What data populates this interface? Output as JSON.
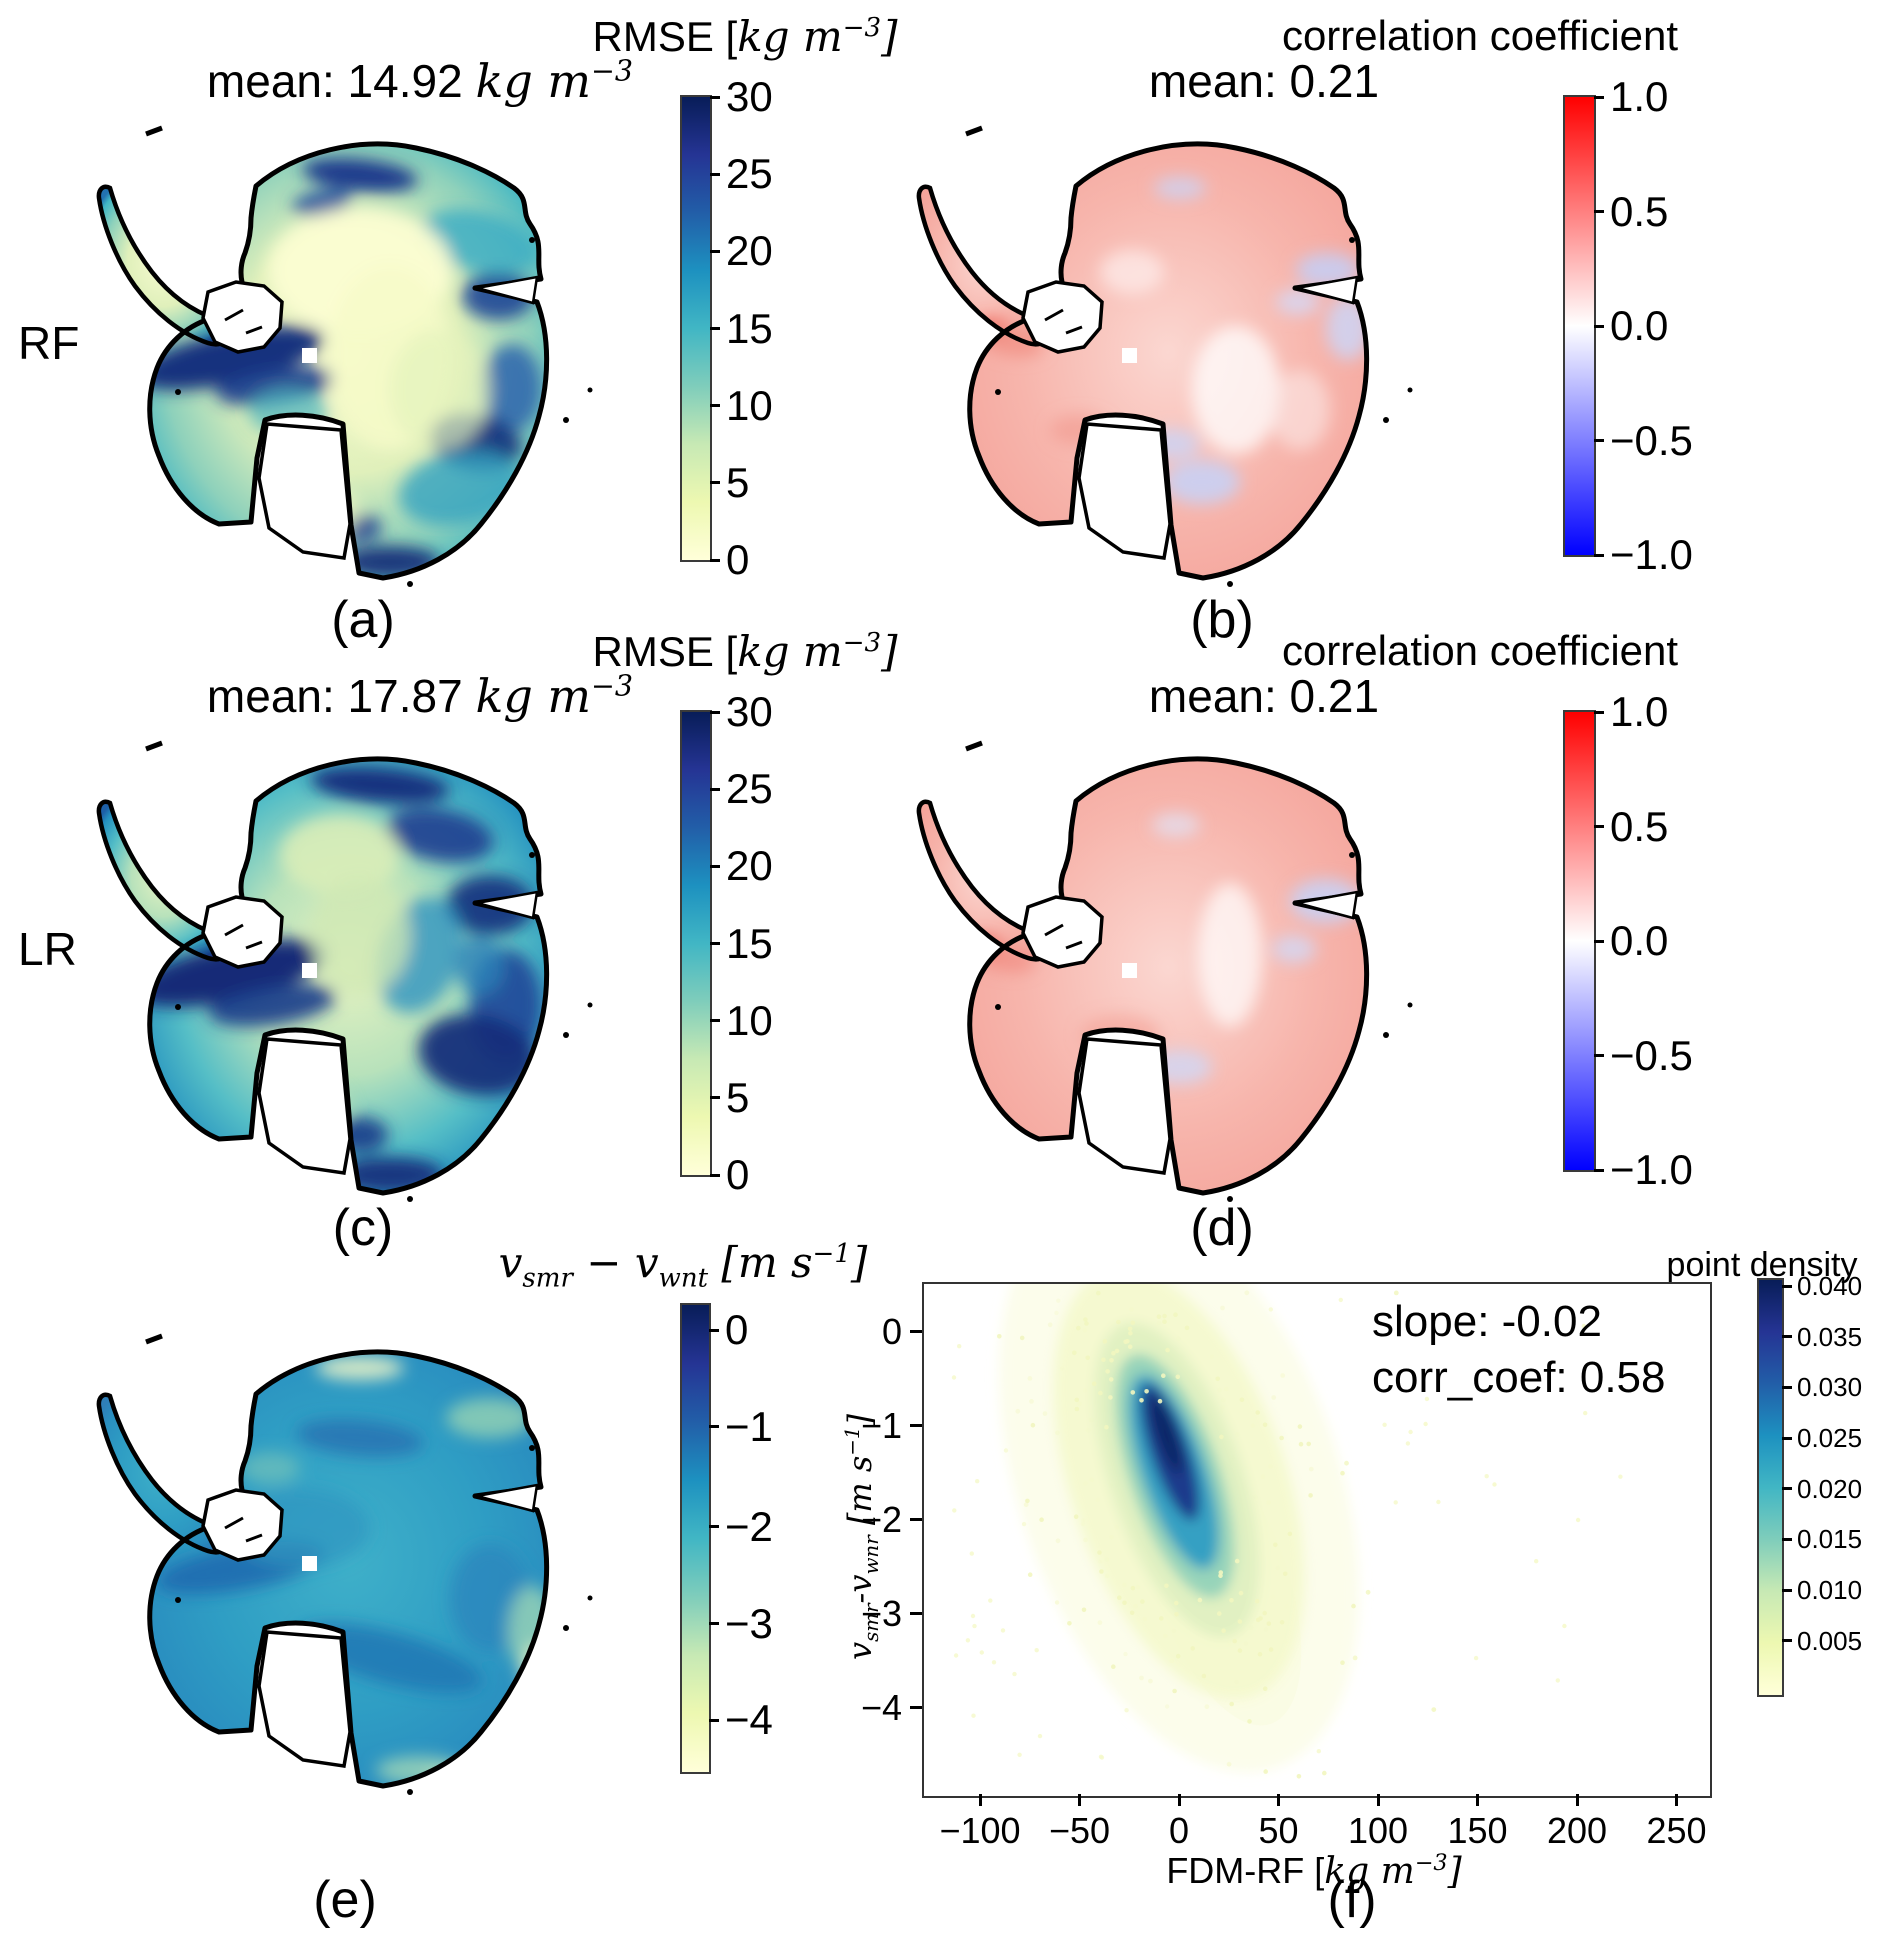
{
  "figure": {
    "row_labels": [
      "RF",
      "LR"
    ]
  },
  "colors": {
    "coastline": "#000000",
    "background": "#ffffff",
    "YlGnBu": [
      "#ffffd9",
      "#edf8b1",
      "#c7e9b4",
      "#7fcdbb",
      "#41b6c4",
      "#1d91c0",
      "#225ea8",
      "#253494",
      "#081d58"
    ],
    "bwr": [
      "#0000ff",
      "#ffffff",
      "#ff0000"
    ],
    "corr_light_red": "#f6b0a8",
    "corr_red_spot": "#ee6257",
    "corr_light_blue": "#c9d0f4",
    "rmse_light": "#e4f1bd",
    "rmse_navy": "#16307e",
    "density_core_navy": "#0e2766"
  },
  "chart_data": [
    {
      "id": "a",
      "type": "heatmap",
      "kind": "antarctica-map",
      "row_label": "RF",
      "colorbar_title_parts": [
        {
          "t": "RMSE ["
        },
        {
          "t": "kg m",
          "math": true
        },
        {
          "t": "−3",
          "math": true,
          "sup": true
        },
        {
          "t": "]",
          "math": true
        }
      ],
      "mean_parts": [
        {
          "t": "mean: 14.92 "
        },
        {
          "t": "kg m",
          "math": true
        },
        {
          "t": "−3",
          "math": true,
          "sup": true
        }
      ],
      "mean_value": 14.92,
      "units": "kg m^-3",
      "caption": "(a)",
      "colorbar": {
        "colormap": "YlGnBu",
        "vmin": 0,
        "vmax": 30,
        "ticks": [
          {
            "label": "30",
            "frac": 0
          },
          {
            "label": "25",
            "frac": 16.7
          },
          {
            "label": "20",
            "frac": 33.3
          },
          {
            "label": "15",
            "frac": 50
          },
          {
            "label": "10",
            "frac": 66.7
          },
          {
            "label": "5",
            "frac": 83.3
          },
          {
            "label": "0",
            "frac": 100
          }
        ]
      }
    },
    {
      "id": "b",
      "type": "heatmap",
      "kind": "antarctica-map",
      "title": "correlation coefficient",
      "mean_label": "mean: 0.21",
      "mean_value": 0.21,
      "caption": "(b)",
      "colorbar": {
        "colormap": "bwr",
        "vmin": -1.0,
        "vmax": 1.0,
        "ticks": [
          {
            "label": "1.0",
            "frac": 0
          },
          {
            "label": "0.5",
            "frac": 25
          },
          {
            "label": "0.0",
            "frac": 50
          },
          {
            "label": "−0.5",
            "frac": 75
          },
          {
            "label": "−1.0",
            "frac": 100
          }
        ]
      }
    },
    {
      "id": "c",
      "type": "heatmap",
      "kind": "antarctica-map",
      "row_label": "LR",
      "colorbar_title_parts": [
        {
          "t": "RMSE ["
        },
        {
          "t": "kg m",
          "math": true
        },
        {
          "t": "−3",
          "math": true,
          "sup": true
        },
        {
          "t": "]",
          "math": true
        }
      ],
      "mean_parts": [
        {
          "t": "mean: 17.87 "
        },
        {
          "t": "kg m",
          "math": true
        },
        {
          "t": "−3",
          "math": true,
          "sup": true
        }
      ],
      "mean_value": 17.87,
      "units": "kg m^-3",
      "caption": "(c)",
      "colorbar": {
        "colormap": "YlGnBu",
        "vmin": 0,
        "vmax": 30,
        "ticks": [
          {
            "label": "30",
            "frac": 0
          },
          {
            "label": "25",
            "frac": 16.7
          },
          {
            "label": "20",
            "frac": 33.3
          },
          {
            "label": "15",
            "frac": 50
          },
          {
            "label": "10",
            "frac": 66.7
          },
          {
            "label": "5",
            "frac": 83.3
          },
          {
            "label": "0",
            "frac": 100
          }
        ]
      }
    },
    {
      "id": "d",
      "type": "heatmap",
      "kind": "antarctica-map",
      "title": "correlation coefficient",
      "mean_label": "mean: 0.21",
      "mean_value": 0.21,
      "caption": "(d)",
      "colorbar": {
        "colormap": "bwr",
        "vmin": -1.0,
        "vmax": 1.0,
        "ticks": [
          {
            "label": "1.0",
            "frac": 0
          },
          {
            "label": "0.5",
            "frac": 25
          },
          {
            "label": "0.0",
            "frac": 50
          },
          {
            "label": "−0.5",
            "frac": 75
          },
          {
            "label": "−1.0",
            "frac": 100
          }
        ]
      }
    },
    {
      "id": "e",
      "type": "heatmap",
      "kind": "antarctica-map",
      "colorbar_title_parts": [
        {
          "t": "v",
          "math": true
        },
        {
          "t": "smr",
          "math": true,
          "sub": true
        },
        {
          "t": " − ",
          "math": true
        },
        {
          "t": "v",
          "math": true
        },
        {
          "t": "wnt",
          "math": true,
          "sub": true
        },
        {
          "t": " [",
          "math": true
        },
        {
          "t": "m s",
          "math": true
        },
        {
          "t": "−1",
          "math": true,
          "sup": true
        },
        {
          "t": "]",
          "math": true
        }
      ],
      "caption": "(e)",
      "colorbar": {
        "colormap": "YlGnBu",
        "vmin": -4.5,
        "vmax": 0.25,
        "ticks": [
          {
            "label": "0",
            "frac": 5.4
          },
          {
            "label": "−1",
            "frac": 26.1
          },
          {
            "label": "−2",
            "frac": 47.5
          },
          {
            "label": "−3",
            "frac": 68.3
          },
          {
            "label": "−4",
            "frac": 88.9
          }
        ]
      }
    },
    {
      "id": "f",
      "type": "scatter",
      "caption": "(f)",
      "annotations": [
        "slope: -0.02",
        "corr_coef: 0.58"
      ],
      "slope": -0.02,
      "corr_coef": 0.58,
      "xlabel_parts": [
        {
          "t": "FDM-RF ["
        },
        {
          "t": "kg m",
          "math": true
        },
        {
          "t": "−3",
          "math": true,
          "sup": true
        },
        {
          "t": "]",
          "math": true
        }
      ],
      "ylabel_parts": [
        {
          "t": "v",
          "math": true
        },
        {
          "t": "smr",
          "math": true,
          "sub": true
        },
        {
          "t": "-",
          "math": true
        },
        {
          "t": "v",
          "math": true
        },
        {
          "t": "wnr",
          "math": true,
          "sub": true
        },
        {
          "t": " [",
          "math": true
        },
        {
          "t": "m s",
          "math": true
        },
        {
          "t": "−1",
          "math": true,
          "sup": true
        },
        {
          "t": "]",
          "math": true
        }
      ],
      "x_ticks": [
        {
          "value": -100,
          "label": "−100"
        },
        {
          "value": -50,
          "label": "−50"
        },
        {
          "value": 0,
          "label": "0"
        },
        {
          "value": 50,
          "label": "50"
        },
        {
          "value": 100,
          "label": "100"
        },
        {
          "value": 150,
          "label": "150"
        },
        {
          "value": 200,
          "label": "200"
        },
        {
          "value": 250,
          "label": "250"
        }
      ],
      "y_ticks": [
        {
          "value": 0,
          "label": "0"
        },
        {
          "value": -1,
          "label": "−1"
        },
        {
          "value": -2,
          "label": "−2"
        },
        {
          "value": -3,
          "label": "−3"
        },
        {
          "value": -4,
          "label": "−4"
        }
      ],
      "xlim": [
        -129,
        266
      ],
      "ylim": [
        -4.95,
        0.52
      ],
      "density_core": {
        "x": 0,
        "y": -1.4,
        "extent_x": [
          -15,
          12
        ],
        "extent_y": [
          -2.4,
          -0.7
        ]
      },
      "colorbar": {
        "title": "point density",
        "colormap": "YlGnBu",
        "vmin": 0.0,
        "vmax": 0.0425,
        "ticks": [
          {
            "label": "0.040",
            "frac": 1.5
          },
          {
            "label": "0.035",
            "frac": 13.7
          },
          {
            "label": "0.030",
            "frac": 25.9
          },
          {
            "label": "0.025",
            "frac": 38.1
          },
          {
            "label": "0.020",
            "frac": 50.3
          },
          {
            "label": "0.015",
            "frac": 62.5
          },
          {
            "label": "0.010",
            "frac": 74.7
          },
          {
            "label": "0.005",
            "frac": 86.9
          }
        ]
      }
    }
  ]
}
